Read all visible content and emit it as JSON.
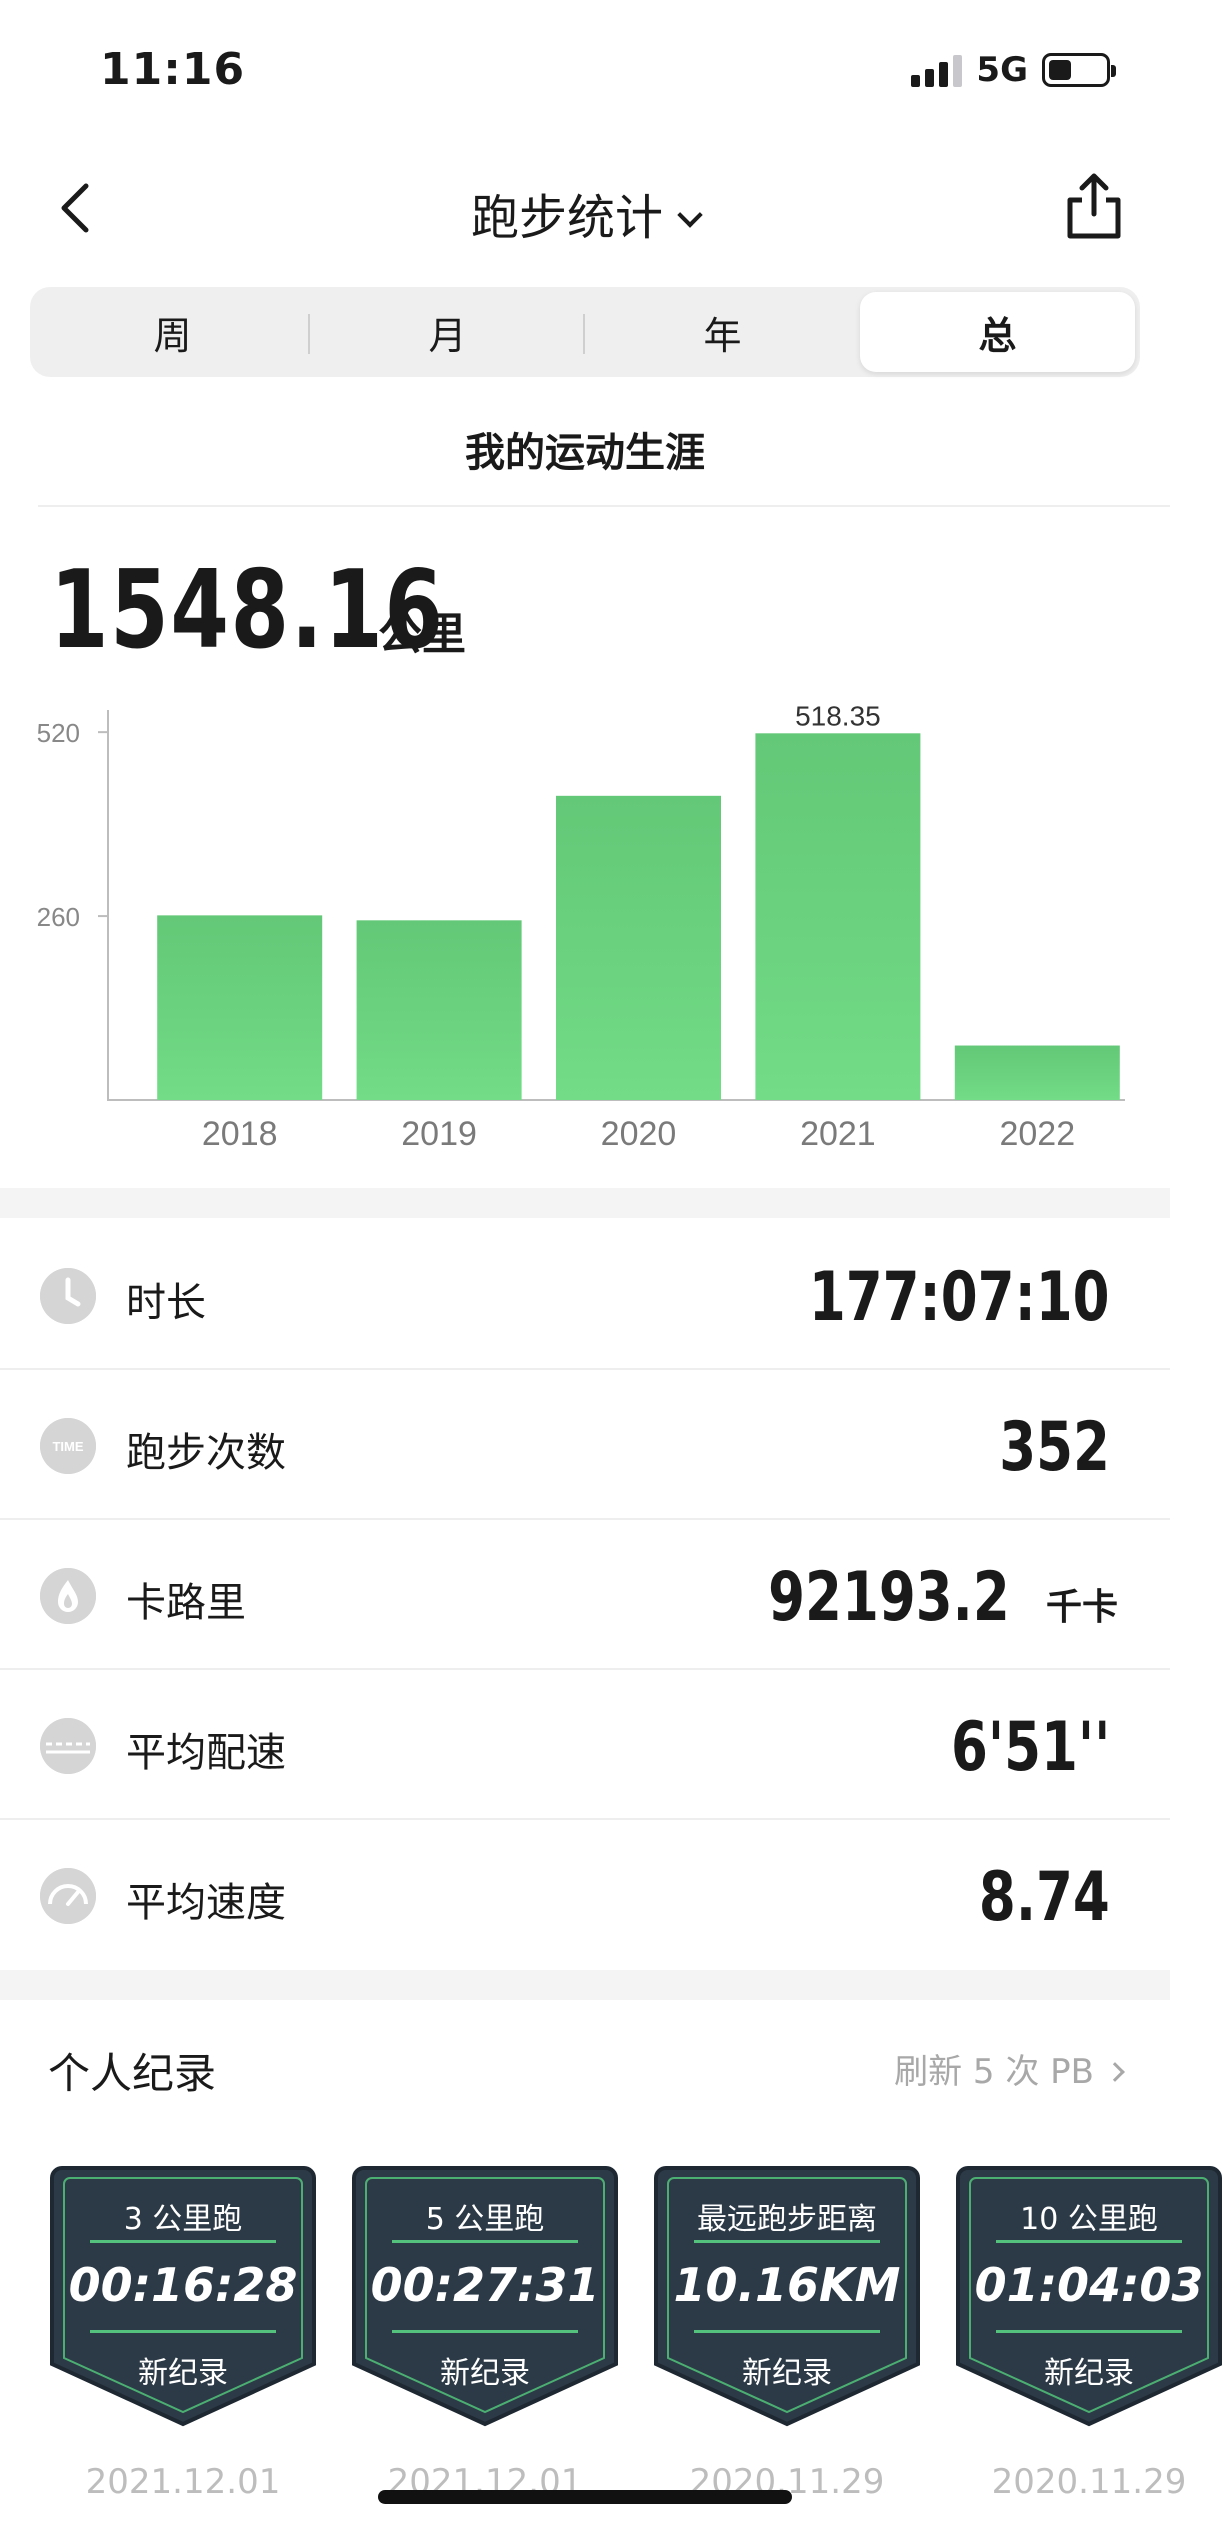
{
  "status_bar": {
    "time": "11:16",
    "network": "5G"
  },
  "nav": {
    "title": "跑步统计"
  },
  "segments": [
    {
      "label": "周",
      "active": false
    },
    {
      "label": "月",
      "active": false
    },
    {
      "label": "年",
      "active": false
    },
    {
      "label": "总",
      "active": true
    }
  ],
  "career_title": "我的运动生涯",
  "total": {
    "value": "1548.16",
    "unit": "公里"
  },
  "chart_data": {
    "type": "bar",
    "categories": [
      "2018",
      "2019",
      "2020",
      "2021",
      "2022"
    ],
    "values": [
      261,
      254,
      430,
      518.35,
      77
    ],
    "data_labels": [
      "",
      "",
      "",
      "518.35",
      ""
    ],
    "yticks": [
      "260",
      "520"
    ],
    "ylim": [
      0,
      540
    ],
    "color": "#6cd47e",
    "grid": false
  },
  "stats": [
    {
      "icon": "clock-icon",
      "label": "时长",
      "value": "177:07:10",
      "unit": ""
    },
    {
      "icon": "time-icon",
      "label": "跑步次数",
      "value": "352",
      "unit": ""
    },
    {
      "icon": "flame-icon",
      "label": "卡路里",
      "value": "92193.2",
      "unit": "千卡"
    },
    {
      "icon": "pace-icon",
      "label": "平均配速",
      "value": "6'51''",
      "unit": ""
    },
    {
      "icon": "speed-icon",
      "label": "平均速度",
      "value": "8.74",
      "unit": ""
    }
  ],
  "records": {
    "title": "个人纪录",
    "link": "刷新 5 次 PB",
    "items": [
      {
        "title": "3 公里跑",
        "value": "00:16:28",
        "sub": "新纪录",
        "date": "2021.12.01"
      },
      {
        "title": "5 公里跑",
        "value": "00:27:31",
        "sub": "新纪录",
        "date": "2021.12.01"
      },
      {
        "title": "最远跑步距离",
        "value": "10.16KM",
        "sub": "新纪录",
        "date": "2020.11.29"
      },
      {
        "title": "10 公里跑",
        "value": "01:04:03",
        "sub": "新纪录",
        "date": "2020.11.29"
      }
    ]
  }
}
